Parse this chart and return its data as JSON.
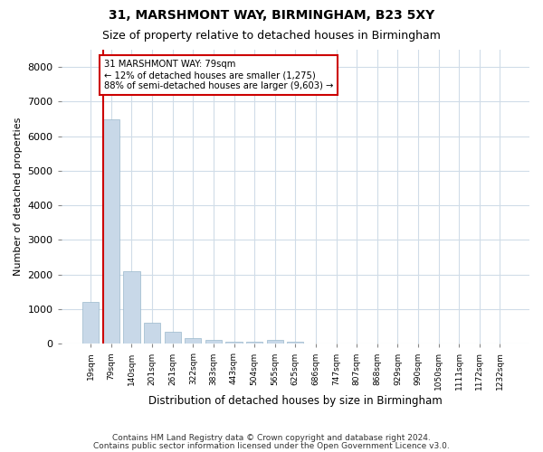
{
  "title1": "31, MARSHMONT WAY, BIRMINGHAM, B23 5XY",
  "title2": "Size of property relative to detached houses in Birmingham",
  "xlabel": "Distribution of detached houses by size in Birmingham",
  "ylabel": "Number of detached properties",
  "categories": [
    "19sqm",
    "79sqm",
    "140sqm",
    "201sqm",
    "261sqm",
    "322sqm",
    "383sqm",
    "443sqm",
    "504sqm",
    "565sqm",
    "625sqm",
    "686sqm",
    "747sqm",
    "807sqm",
    "868sqm",
    "929sqm",
    "990sqm",
    "1050sqm",
    "1111sqm",
    "1172sqm",
    "1232sqm"
  ],
  "values": [
    1200,
    6500,
    2100,
    600,
    350,
    170,
    110,
    70,
    50,
    110,
    50,
    0,
    0,
    0,
    0,
    0,
    0,
    0,
    0,
    0,
    0
  ],
  "bar_color": "#c8d8e8",
  "bar_edge_color": "#9ab8cc",
  "property_line_bar_idx": 1,
  "annotation_text": "31 MARSHMONT WAY: 79sqm\n← 12% of detached houses are smaller (1,275)\n88% of semi-detached houses are larger (9,603) →",
  "annotation_box_color": "#ffffff",
  "annotation_border_color": "#cc0000",
  "vline_color": "#cc0000",
  "ylim": [
    0,
    8500
  ],
  "yticks": [
    0,
    1000,
    2000,
    3000,
    4000,
    5000,
    6000,
    7000,
    8000
  ],
  "footer1": "Contains HM Land Registry data © Crown copyright and database right 2024.",
  "footer2": "Contains public sector information licensed under the Open Government Licence v3.0.",
  "bg_color": "#ffffff",
  "plot_bg_color": "#ffffff",
  "grid_color": "#d0dce8",
  "title1_fontsize": 10,
  "title2_fontsize": 9
}
